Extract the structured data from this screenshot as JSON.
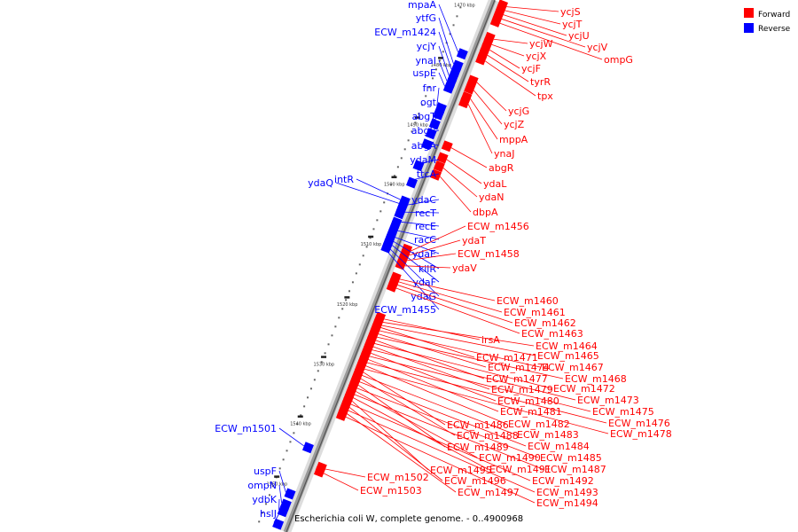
{
  "caption": "Escherichia coli W, complete genome. - 0..4900968",
  "legend": [
    {
      "label": "Forward",
      "color": "#ff0000"
    },
    {
      "label": "Reverse",
      "color": "#0000ff"
    }
  ],
  "colors": {
    "forward": "#ff0000",
    "reverse": "#0000ff",
    "backbone": "#999999"
  },
  "ticks": [
    {
      "label": "1470 kbp",
      "t": 0.015
    },
    {
      "label": "1480 kbp",
      "t": 0.128
    },
    {
      "label": "1490 kbp",
      "t": 0.24
    },
    {
      "label": "1500 kbp",
      "t": 0.352
    },
    {
      "label": "1510 kbp",
      "t": 0.464
    },
    {
      "label": "1520 kbp",
      "t": 0.578
    },
    {
      "label": "1530 kbp",
      "t": 0.69
    },
    {
      "label": "1540 kbp",
      "t": 0.802
    },
    {
      "label": "1550 kbp",
      "t": 0.915
    }
  ],
  "reverse_genes": [
    {
      "label": "mpaA",
      "t": 0.108
    },
    {
      "label": "ytfG",
      "t": 0.13
    },
    {
      "label": "ECW_m1424",
      "t": 0.14
    },
    {
      "label": "ycjY",
      "t": 0.152
    },
    {
      "label": "ynaI",
      "t": 0.162
    },
    {
      "label": "uspE",
      "t": 0.172
    },
    {
      "label": "fnr",
      "t": 0.21
    },
    {
      "label": "ogt",
      "t": 0.222
    },
    {
      "label": "abgT",
      "t": 0.24
    },
    {
      "label": "abgB",
      "t": 0.258
    },
    {
      "label": "abgA",
      "t": 0.278
    },
    {
      "label": "ydaM",
      "t": 0.318
    },
    {
      "label": "ttcA",
      "t": 0.35
    },
    {
      "label": "intR",
      "t": 0.385
    },
    {
      "label": "ydaQ",
      "t": 0.392
    },
    {
      "label": "ydaC",
      "t": 0.398
    },
    {
      "label": "recT",
      "t": 0.408
    },
    {
      "label": "recE",
      "t": 0.425
    },
    {
      "label": "racC",
      "t": 0.44
    },
    {
      "label": "ydaE",
      "t": 0.45
    },
    {
      "label": "kilR",
      "t": 0.455
    },
    {
      "label": "ydaF",
      "t": 0.46
    },
    {
      "label": "ydaG",
      "t": 0.466
    },
    {
      "label": "ECW_m1455",
      "t": 0.472
    },
    {
      "label": "ECW_m1501",
      "t": 0.848
    },
    {
      "label": "uspF",
      "t": 0.935
    },
    {
      "label": "ompN",
      "t": 0.955
    },
    {
      "label": "ydbK",
      "t": 0.968
    },
    {
      "label": "hslJ",
      "t": 0.992
    }
  ],
  "forward_genes": [
    {
      "label": "ycjS",
      "t": 0.003
    },
    {
      "label": "ycjT",
      "t": 0.01
    },
    {
      "label": "ycjU",
      "t": 0.018
    },
    {
      "label": "ycjV",
      "t": 0.026
    },
    {
      "label": "ompG",
      "t": 0.034
    },
    {
      "label": "ycjW",
      "t": 0.064
    },
    {
      "label": "ycjX",
      "t": 0.074
    },
    {
      "label": "ycjF",
      "t": 0.084
    },
    {
      "label": "tyrR",
      "t": 0.094
    },
    {
      "label": "tpx",
      "t": 0.105
    },
    {
      "label": "ycjG",
      "t": 0.145
    },
    {
      "label": "ycjZ",
      "t": 0.16
    },
    {
      "label": "mppA",
      "t": 0.176
    },
    {
      "label": "ynaJ",
      "t": 0.186
    },
    {
      "label": "abgR",
      "t": 0.268
    },
    {
      "label": "ydaL",
      "t": 0.29
    },
    {
      "label": "ydaN",
      "t": 0.306
    },
    {
      "label": "dbpA",
      "t": 0.322
    },
    {
      "label": "ECW_m1456",
      "t": 0.462
    },
    {
      "label": "ydaT",
      "t": 0.47
    },
    {
      "label": "ECW_m1458",
      "t": 0.48
    },
    {
      "label": "ydaV",
      "t": 0.49
    },
    {
      "label": "ECW_m1460",
      "t": 0.515
    },
    {
      "label": "ECW_m1461",
      "t": 0.52
    },
    {
      "label": "ECW_m1462",
      "t": 0.526
    },
    {
      "label": "ECW_m1463",
      "t": 0.532
    },
    {
      "label": "irsA",
      "t": 0.59
    },
    {
      "label": "ECW_m1464",
      "t": 0.596
    },
    {
      "label": "ECW_m1465",
      "t": 0.602
    },
    {
      "label": "ECW_m1471",
      "t": 0.606
    },
    {
      "label": "ECW_m1467",
      "t": 0.612
    },
    {
      "label": "ECW_m1474",
      "t": 0.618
    },
    {
      "label": "ECW_m1468",
      "t": 0.624
    },
    {
      "label": "ECW_m1477",
      "t": 0.63
    },
    {
      "label": "ECW_m1472",
      "t": 0.636
    },
    {
      "label": "ECW_m1479",
      "t": 0.642
    },
    {
      "label": "ECW_m1473",
      "t": 0.648
    },
    {
      "label": "ECW_m1480",
      "t": 0.654
    },
    {
      "label": "ECW_m1475",
      "t": 0.66
    },
    {
      "label": "ECW_m1481",
      "t": 0.666
    },
    {
      "label": "ECW_m1476",
      "t": 0.672
    },
    {
      "label": "ECW_m1482",
      "t": 0.678
    },
    {
      "label": "ECW_m1478",
      "t": 0.684
    },
    {
      "label": "ECW_m1486",
      "t": 0.69
    },
    {
      "label": "ECW_m1483",
      "t": 0.696
    },
    {
      "label": "ECW_m1488",
      "t": 0.702
    },
    {
      "label": "ECW_m1484",
      "t": 0.708
    },
    {
      "label": "ECW_m1489",
      "t": 0.714
    },
    {
      "label": "ECW_m1485",
      "t": 0.72
    },
    {
      "label": "ECW_m1490",
      "t": 0.726
    },
    {
      "label": "ECW_m1487",
      "t": 0.732
    },
    {
      "label": "ECW_m1491",
      "t": 0.738
    },
    {
      "label": "ECW_m1495",
      "t": 0.744
    },
    {
      "label": "ECW_m1492",
      "t": 0.75
    },
    {
      "label": "ECW_m1496",
      "t": 0.756
    },
    {
      "label": "ECW_m1493",
      "t": 0.762
    },
    {
      "label": "ECW_m1497",
      "t": 0.768
    },
    {
      "label": "ECW_m1494",
      "t": 0.774
    },
    {
      "label": "ECW_m1502",
      "t": 0.872
    },
    {
      "label": "ECW_m1503",
      "t": 0.88
    }
  ]
}
